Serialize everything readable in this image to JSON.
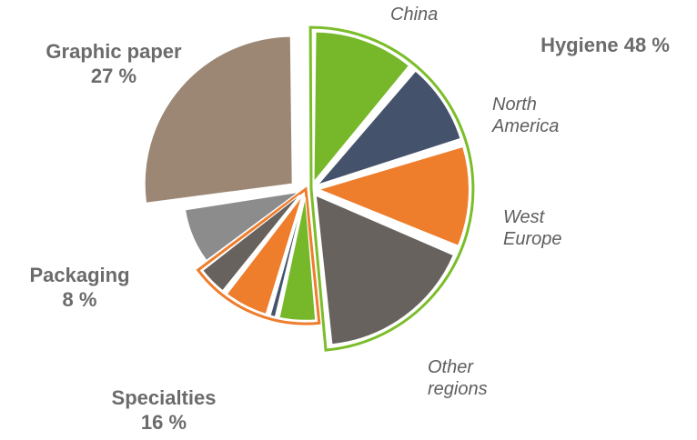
{
  "chart_data": {
    "type": "pie",
    "groups": [
      {
        "name": "Hygiene",
        "pct_label": "48 %",
        "value": 48,
        "color": "#7bbd2a"
      },
      {
        "name": "Specialties",
        "pct_label": "16 %",
        "value": 16,
        "color": "#ee7d2c"
      },
      {
        "name": "Packaging",
        "pct_label": "8 %",
        "value": 8,
        "color": "#8c8c8c"
      },
      {
        "name": "Graphic paper",
        "pct_label": "27 %",
        "value": 27,
        "color": "#9c8775"
      }
    ],
    "slices": [
      {
        "group": "Hygiene",
        "sub": "China",
        "value": 11,
        "color": "#76b82a"
      },
      {
        "group": "Hygiene",
        "sub": "North America",
        "value": 9,
        "color": "#44536b"
      },
      {
        "group": "Hygiene",
        "sub": "West Europe",
        "value": 11,
        "color": "#ee7d2c"
      },
      {
        "group": "Hygiene",
        "sub": "Other regions",
        "value": 17,
        "color": "#67625d"
      },
      {
        "group": "Specialties",
        "sub": "",
        "value": 5,
        "color": "#76b82a"
      },
      {
        "group": "Specialties",
        "sub": "",
        "value": 1,
        "color": "#44536b"
      },
      {
        "group": "Specialties",
        "sub": "",
        "value": 6,
        "color": "#ee7d2c"
      },
      {
        "group": "Specialties",
        "sub": "",
        "value": 4,
        "color": "#67625d"
      },
      {
        "group": "Packaging",
        "sub": "",
        "value": 8,
        "color": "#8c8c8c"
      },
      {
        "group": "Graphic paper",
        "sub": "",
        "value": 27,
        "color": "#9c8775"
      }
    ],
    "sub_labels": [
      "China",
      "North America",
      "West Europe",
      "Other regions"
    ],
    "sub_labels_lines": {
      "china": [
        "China"
      ],
      "north_america": [
        "North",
        "America"
      ],
      "west_europe": [
        "West",
        "Europe"
      ],
      "other_regions": [
        "Other",
        "regions"
      ]
    },
    "title": "",
    "legend": "none"
  }
}
